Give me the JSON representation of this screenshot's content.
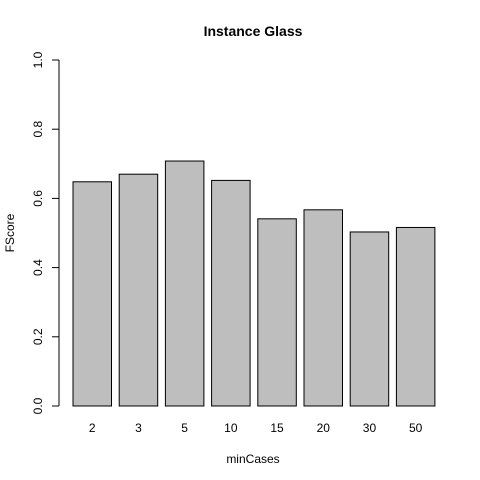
{
  "chart_data": {
    "type": "bar",
    "title": "Instance Glass",
    "xlabel": "minCases",
    "ylabel": "FScore",
    "categories": [
      "2",
      "3",
      "5",
      "10",
      "15",
      "20",
      "30",
      "50"
    ],
    "values": [
      0.648,
      0.67,
      0.708,
      0.652,
      0.541,
      0.567,
      0.503,
      0.516
    ],
    "ylim": [
      0,
      1
    ],
    "yticks": [
      {
        "value": 0.0,
        "label": "0.0"
      },
      {
        "value": 0.2,
        "label": "0.2"
      },
      {
        "value": 0.4,
        "label": "0.4"
      },
      {
        "value": 0.6,
        "label": "0.6"
      },
      {
        "value": 0.8,
        "label": "0.8"
      },
      {
        "value": 1.0,
        "label": "1.0"
      }
    ],
    "grid": false,
    "bar_color": "#bebebe",
    "bar_stroke": "#000000"
  }
}
